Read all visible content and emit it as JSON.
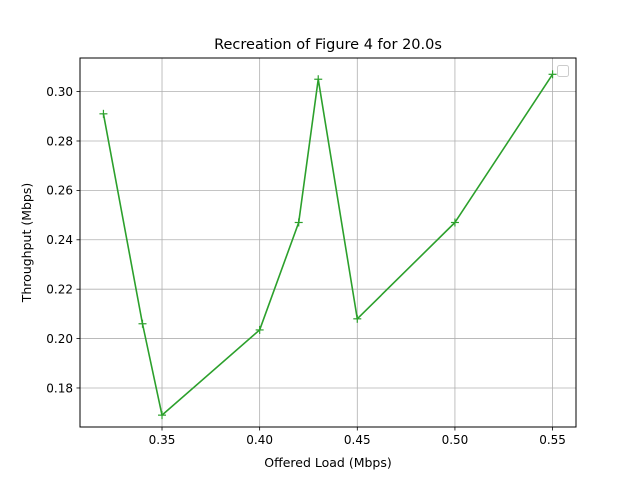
{
  "chart_data": {
    "type": "line",
    "title": "Recreation of Figure 4 for 20.0s",
    "xlabel": "Offered Load (Mbps)",
    "ylabel": "Throughput (Mbps)",
    "xlim": [
      0.308,
      0.562
    ],
    "ylim": [
      0.1642,
      0.3136
    ],
    "xticks": [
      0.35,
      0.4,
      0.45,
      0.5,
      0.55
    ],
    "xtick_labels": [
      "0.35",
      "0.40",
      "0.45",
      "0.50",
      "0.55"
    ],
    "yticks": [
      0.18,
      0.2,
      0.22,
      0.24,
      0.26,
      0.28,
      0.3
    ],
    "ytick_labels": [
      "0.18",
      "0.20",
      "0.22",
      "0.24",
      "0.26",
      "0.28",
      "0.30"
    ],
    "grid": true,
    "legend": "top-right, empty",
    "series": [
      {
        "color": "#2ca02c",
        "marker": "+",
        "x": [
          0.32,
          0.34,
          0.35,
          0.4,
          0.42,
          0.43,
          0.45,
          0.5,
          0.55
        ],
        "y": [
          0.291,
          0.206,
          0.169,
          0.2035,
          0.247,
          0.305,
          0.208,
          0.247,
          0.307
        ]
      }
    ]
  }
}
